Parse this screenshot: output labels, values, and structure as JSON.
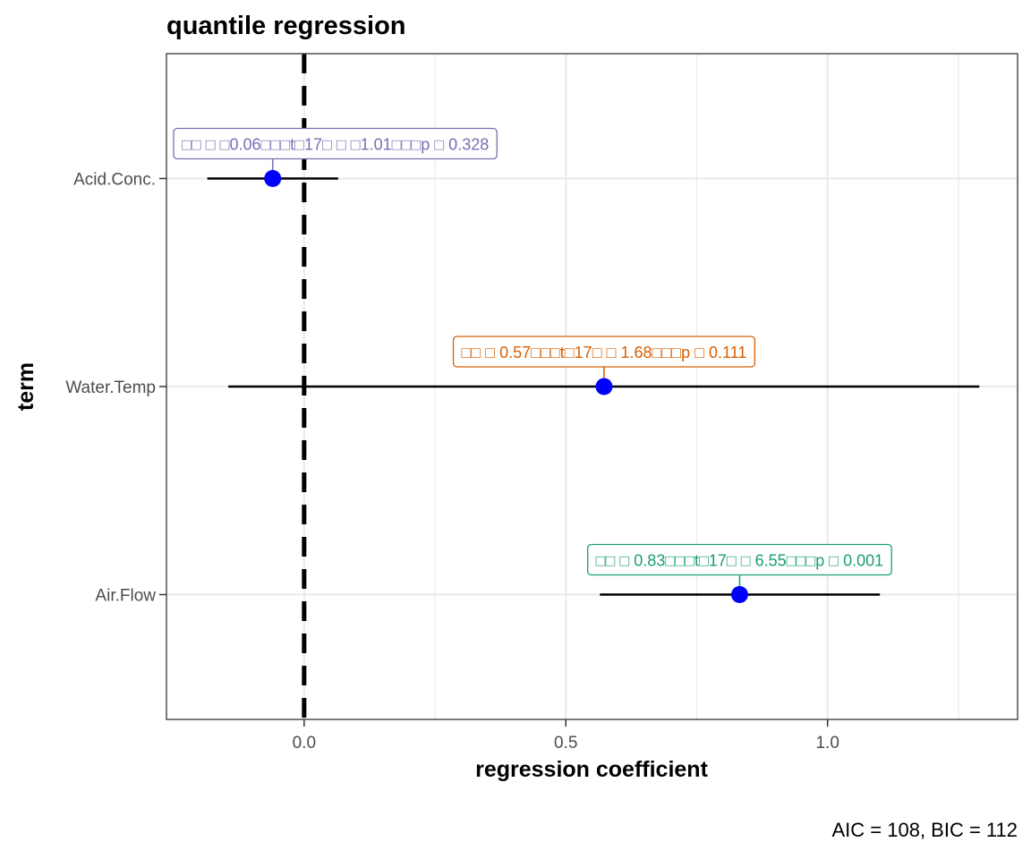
{
  "chart_data": {
    "type": "scatter",
    "title": "quantile regression",
    "xlabel": "regression coefficient",
    "ylabel": "term",
    "caption": "AIC = 108, BIC = 112",
    "xlim": [
      -0.263,
      1.363
    ],
    "x_ticks": [
      0.0,
      0.5,
      1.0
    ],
    "x_tick_labels": [
      "0.0",
      "0.5",
      "1.0"
    ],
    "x_minor_ticks": [
      0.25,
      0.75,
      1.25
    ],
    "reference_line_x": 0,
    "grid": true,
    "point_color": "#0000ff",
    "terms": [
      {
        "term": "Acid.Conc.",
        "estimate": -0.06,
        "conf_low": -0.185,
        "conf_high": 0.065,
        "label": "□□ □ □0.06□□□t□17□ □ □1.01□□□p □ 0.328",
        "label_color": "#7570b3"
      },
      {
        "term": "Water.Temp",
        "estimate": 0.573,
        "conf_low": -0.145,
        "conf_high": 1.29,
        "label": "□□ □ 0.57□□□t□17□ □ 1.68□□□p □ 0.111",
        "label_color": "#d95f02"
      },
      {
        "term": "Air.Flow",
        "estimate": 0.832,
        "conf_low": 0.565,
        "conf_high": 1.1,
        "label": "□□ □ 0.83□□□t□17□ □ 6.55□□□p □ 0.001",
        "label_color": "#1b9e77"
      }
    ]
  }
}
